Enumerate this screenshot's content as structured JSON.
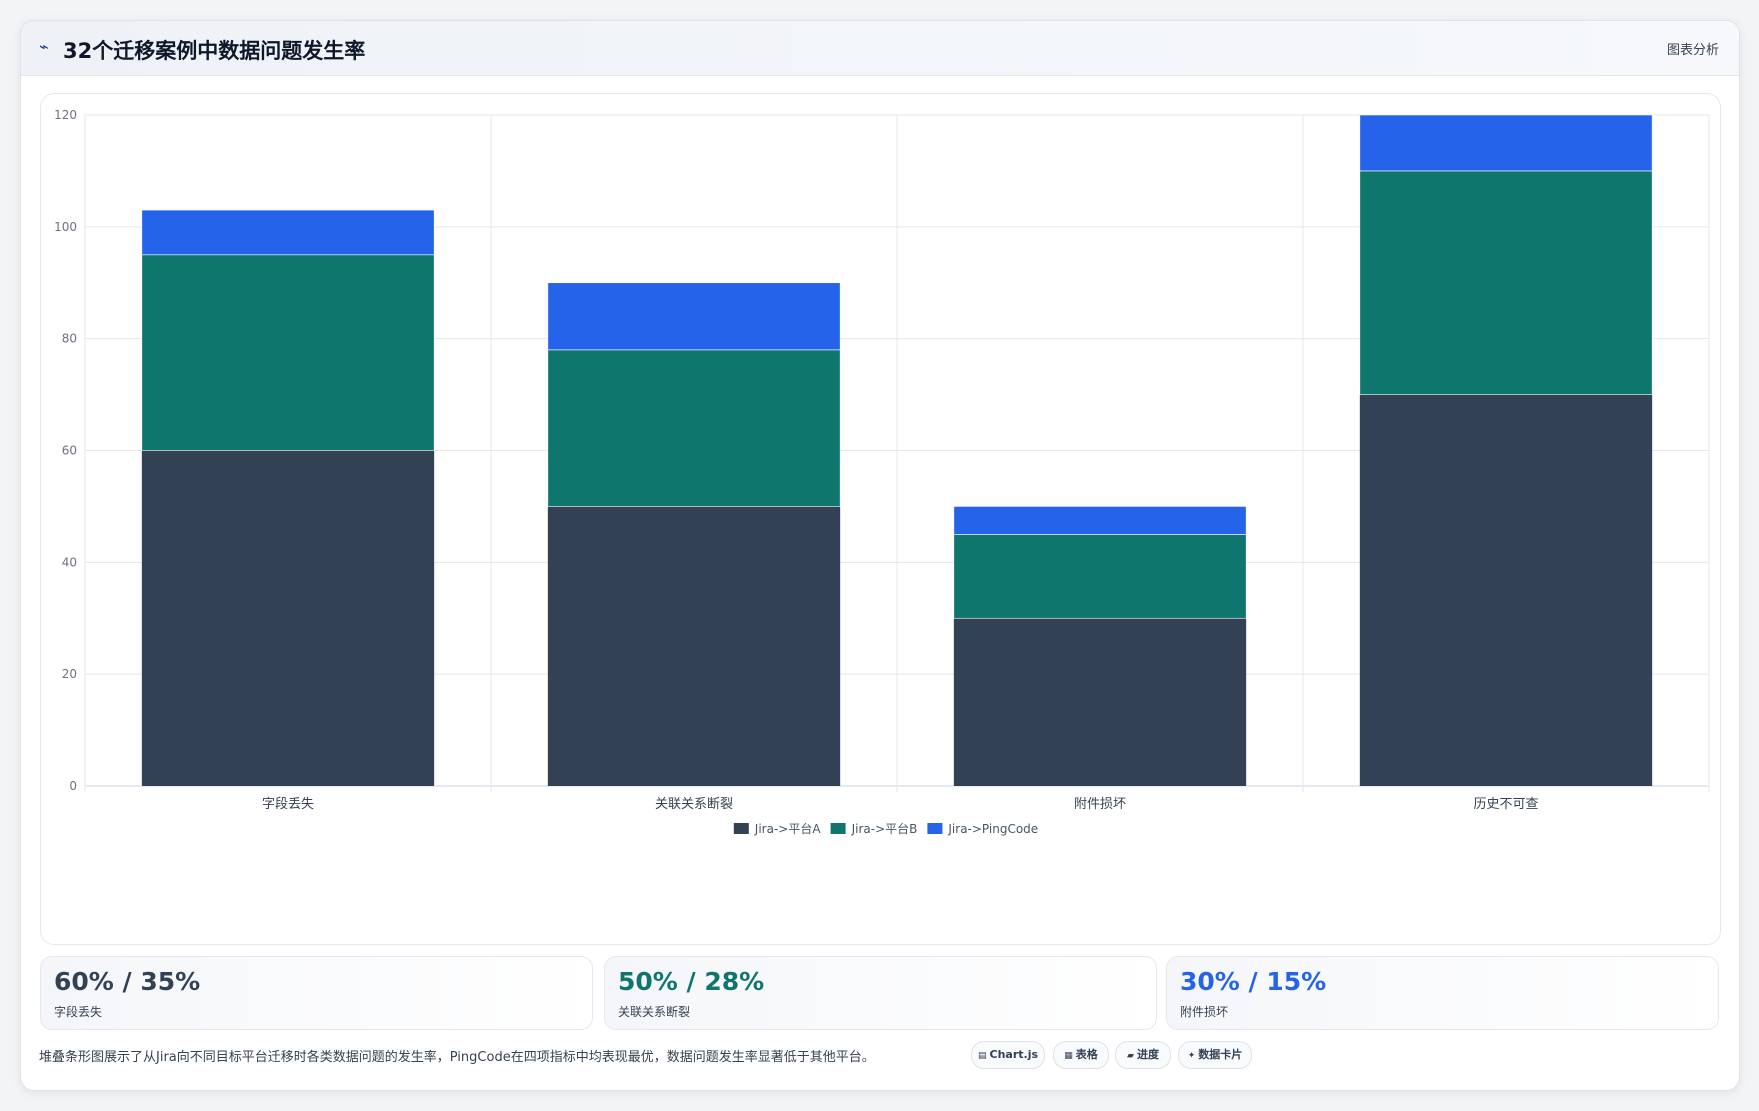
{
  "header": {
    "icon": "trend-icon",
    "title": "32个迁移案例中数据问题发生率",
    "action_label": "图表分析"
  },
  "chart_data": {
    "type": "bar",
    "stacked": true,
    "categories": [
      "字段丢失",
      "关联关系断裂",
      "附件损坏",
      "历史不可查"
    ],
    "series": [
      {
        "name": "Jira->平台A",
        "color": "#334155",
        "values": [
          60,
          50,
          30,
          70
        ]
      },
      {
        "name": "Jira->平台B",
        "color": "#0f766e",
        "values": [
          35,
          28,
          15,
          40
        ]
      },
      {
        "name": "Jira->PingCode",
        "color": "#2563eb",
        "values": [
          8,
          12,
          5,
          10
        ]
      }
    ],
    "ylim": [
      0,
      120
    ],
    "yticks": [
      0,
      20,
      40,
      60,
      80,
      100,
      120
    ],
    "grid": true,
    "legend": "bottom-center"
  },
  "stats": [
    {
      "value": "60% / 35%",
      "label": "字段丢失",
      "color": "#334155"
    },
    {
      "value": "50% / 28%",
      "label": "关联关系断裂",
      "color": "#0f766e"
    },
    {
      "value": "30% / 15%",
      "label": "附件损坏",
      "color": "#2563eb"
    }
  ],
  "footer": {
    "description": "堆叠条形图展示了从Jira向不同目标平台迁移时各类数据问题的发生率，PingCode在四项指标中均表现最优，数据问题发生率显著低于其他平台。",
    "tags": [
      {
        "icon": "chart-icon",
        "glyph": "▤",
        "label": "Chart.js"
      },
      {
        "icon": "table-icon",
        "glyph": "▦",
        "label": "表格"
      },
      {
        "icon": "progress-icon",
        "glyph": "▰",
        "label": "进度"
      },
      {
        "icon": "card-icon",
        "glyph": "✦",
        "label": "数据卡片"
      }
    ]
  }
}
